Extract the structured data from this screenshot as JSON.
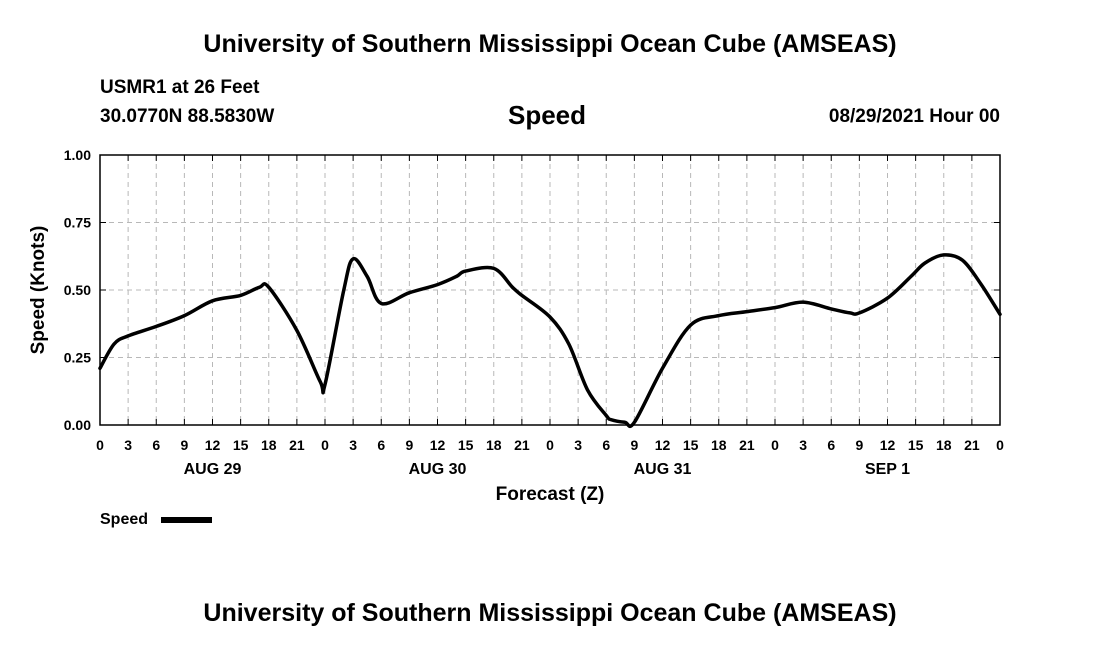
{
  "header": {
    "title": "University of Southern Mississippi Ocean Cube (AMSEAS)",
    "station": "USMR1 at 26 Feet",
    "coordinates": "30.0770N  88.5830W",
    "chart_title": "Speed",
    "datetime": "08/29/2021 Hour 00"
  },
  "footer": {
    "title": "University of Southern Mississippi Ocean Cube (AMSEAS)"
  },
  "chart_data": {
    "type": "line",
    "title": "Speed",
    "xlabel": "Forecast (Z)",
    "ylabel": "Speed (Knots)",
    "xlim": [
      0,
      96
    ],
    "ylim": [
      0,
      1
    ],
    "yticks": [
      "0.00",
      "0.25",
      "0.50",
      "0.75",
      "1.00"
    ],
    "ytick_values": [
      0,
      0.25,
      0.5,
      0.75,
      1.0
    ],
    "xtick_labels": [
      "0",
      "3",
      "6",
      "9",
      "12",
      "15",
      "18",
      "21",
      "0",
      "3",
      "6",
      "9",
      "12",
      "15",
      "18",
      "21",
      "0",
      "3",
      "6",
      "9",
      "12",
      "15",
      "18",
      "21",
      "0",
      "3",
      "6",
      "9",
      "12",
      "15",
      "18",
      "21",
      "0"
    ],
    "date_labels": [
      {
        "label": "AUG 29",
        "hour": 12
      },
      {
        "label": "AUG 30",
        "hour": 36
      },
      {
        "label": "AUG 31",
        "hour": 60
      },
      {
        "label": "SEP 1",
        "hour": 84
      }
    ],
    "grid": true,
    "legend": [
      {
        "label": "Speed",
        "color": "#000000"
      }
    ],
    "legend_position": "bottom-left",
    "series": [
      {
        "name": "Speed",
        "color": "#000000",
        "x": [
          0,
          1.5,
          3,
          6,
          9,
          12,
          15,
          17,
          18,
          21,
          23.5,
          24,
          26,
          27,
          28.5,
          30,
          33,
          36,
          38,
          39,
          42,
          44,
          45,
          48,
          50,
          52,
          54,
          54.5,
          56,
          57,
          60,
          63,
          66,
          69,
          72,
          75,
          78,
          80,
          81,
          84,
          86.5,
          88,
          90,
          92,
          94,
          96
        ],
        "values": [
          0.21,
          0.3,
          0.33,
          0.365,
          0.405,
          0.46,
          0.48,
          0.51,
          0.51,
          0.35,
          0.16,
          0.15,
          0.5,
          0.615,
          0.55,
          0.45,
          0.49,
          0.52,
          0.55,
          0.57,
          0.58,
          0.51,
          0.48,
          0.4,
          0.3,
          0.13,
          0.035,
          0.02,
          0.01,
          0.01,
          0.21,
          0.37,
          0.405,
          0.42,
          0.435,
          0.455,
          0.43,
          0.415,
          0.415,
          0.47,
          0.55,
          0.6,
          0.63,
          0.61,
          0.52,
          0.41
        ]
      }
    ]
  }
}
